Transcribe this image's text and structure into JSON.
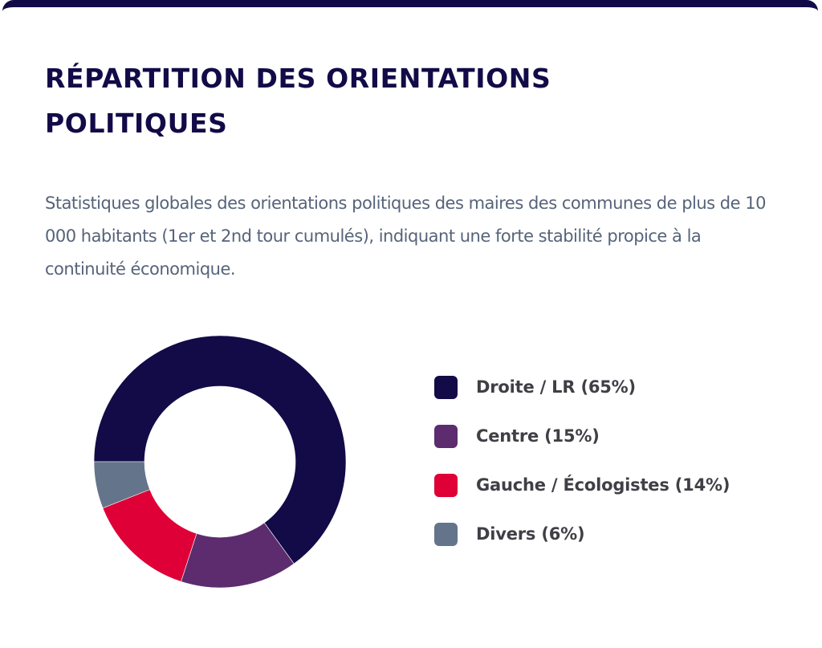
{
  "card": {
    "accent_color": "#120b47"
  },
  "header": {
    "title": "RÉPARTITION DES ORIENTATIONS POLITIQUES",
    "description": "Statistiques globales des orientations politiques des maires des communes de plus de 10 000 habitants (1er et 2nd tour cumulés), indiquant une forte stabilité propice à la continuité économique."
  },
  "chart_data": {
    "type": "pie",
    "variant": "donut",
    "title": "RÉPARTITION DES ORIENTATIONS POLITIQUES",
    "start": "left",
    "direction": "clockwise",
    "legend_position": "right",
    "categories": [
      "Droite / LR",
      "Centre",
      "Gauche / Écologistes",
      "Divers"
    ],
    "values": [
      65,
      15,
      14,
      6
    ],
    "unit": "%",
    "colors": [
      "#120b47",
      "#5c2c6e",
      "#de0036",
      "#64748b"
    ],
    "legend": [
      {
        "label": "Droite / LR (65%)",
        "color": "#120b47"
      },
      {
        "label": "Centre (15%)",
        "color": "#5c2c6e"
      },
      {
        "label": "Gauche / Écologistes (14%)",
        "color": "#de0036"
      },
      {
        "label": "Divers (6%)",
        "color": "#64748b"
      }
    ]
  }
}
